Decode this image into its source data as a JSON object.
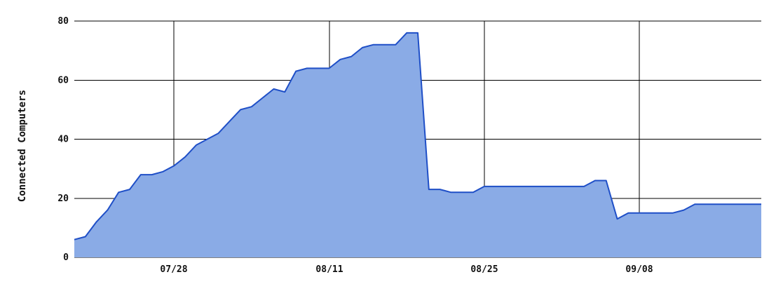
{
  "chart_data": {
    "type": "area",
    "title": "",
    "xlabel": "",
    "ylabel": "Connected Computers",
    "ylim": [
      0,
      80
    ],
    "y_ticks": [
      0,
      20,
      40,
      60,
      80
    ],
    "x_tick_labels": [
      "07/28",
      "08/11",
      "08/25",
      "09/08"
    ],
    "grid": true,
    "colors": {
      "fill": "#8aabe6",
      "line": "#1f4fc7",
      "grid": "#000000"
    },
    "series": [
      {
        "values": [
          6,
          7,
          12,
          16,
          22,
          23,
          28,
          28,
          29,
          31,
          34,
          38,
          40,
          42,
          46,
          50,
          51,
          54,
          57,
          56,
          63,
          64,
          64,
          64,
          67,
          68,
          71,
          72,
          72,
          72,
          76,
          76,
          23,
          23,
          22,
          22,
          22,
          24,
          24,
          24,
          24,
          24,
          24,
          24,
          24,
          24,
          24,
          26,
          26,
          13,
          15,
          15,
          15,
          15,
          15,
          16,
          18,
          18,
          18,
          18,
          18,
          18,
          18
        ]
      }
    ]
  }
}
